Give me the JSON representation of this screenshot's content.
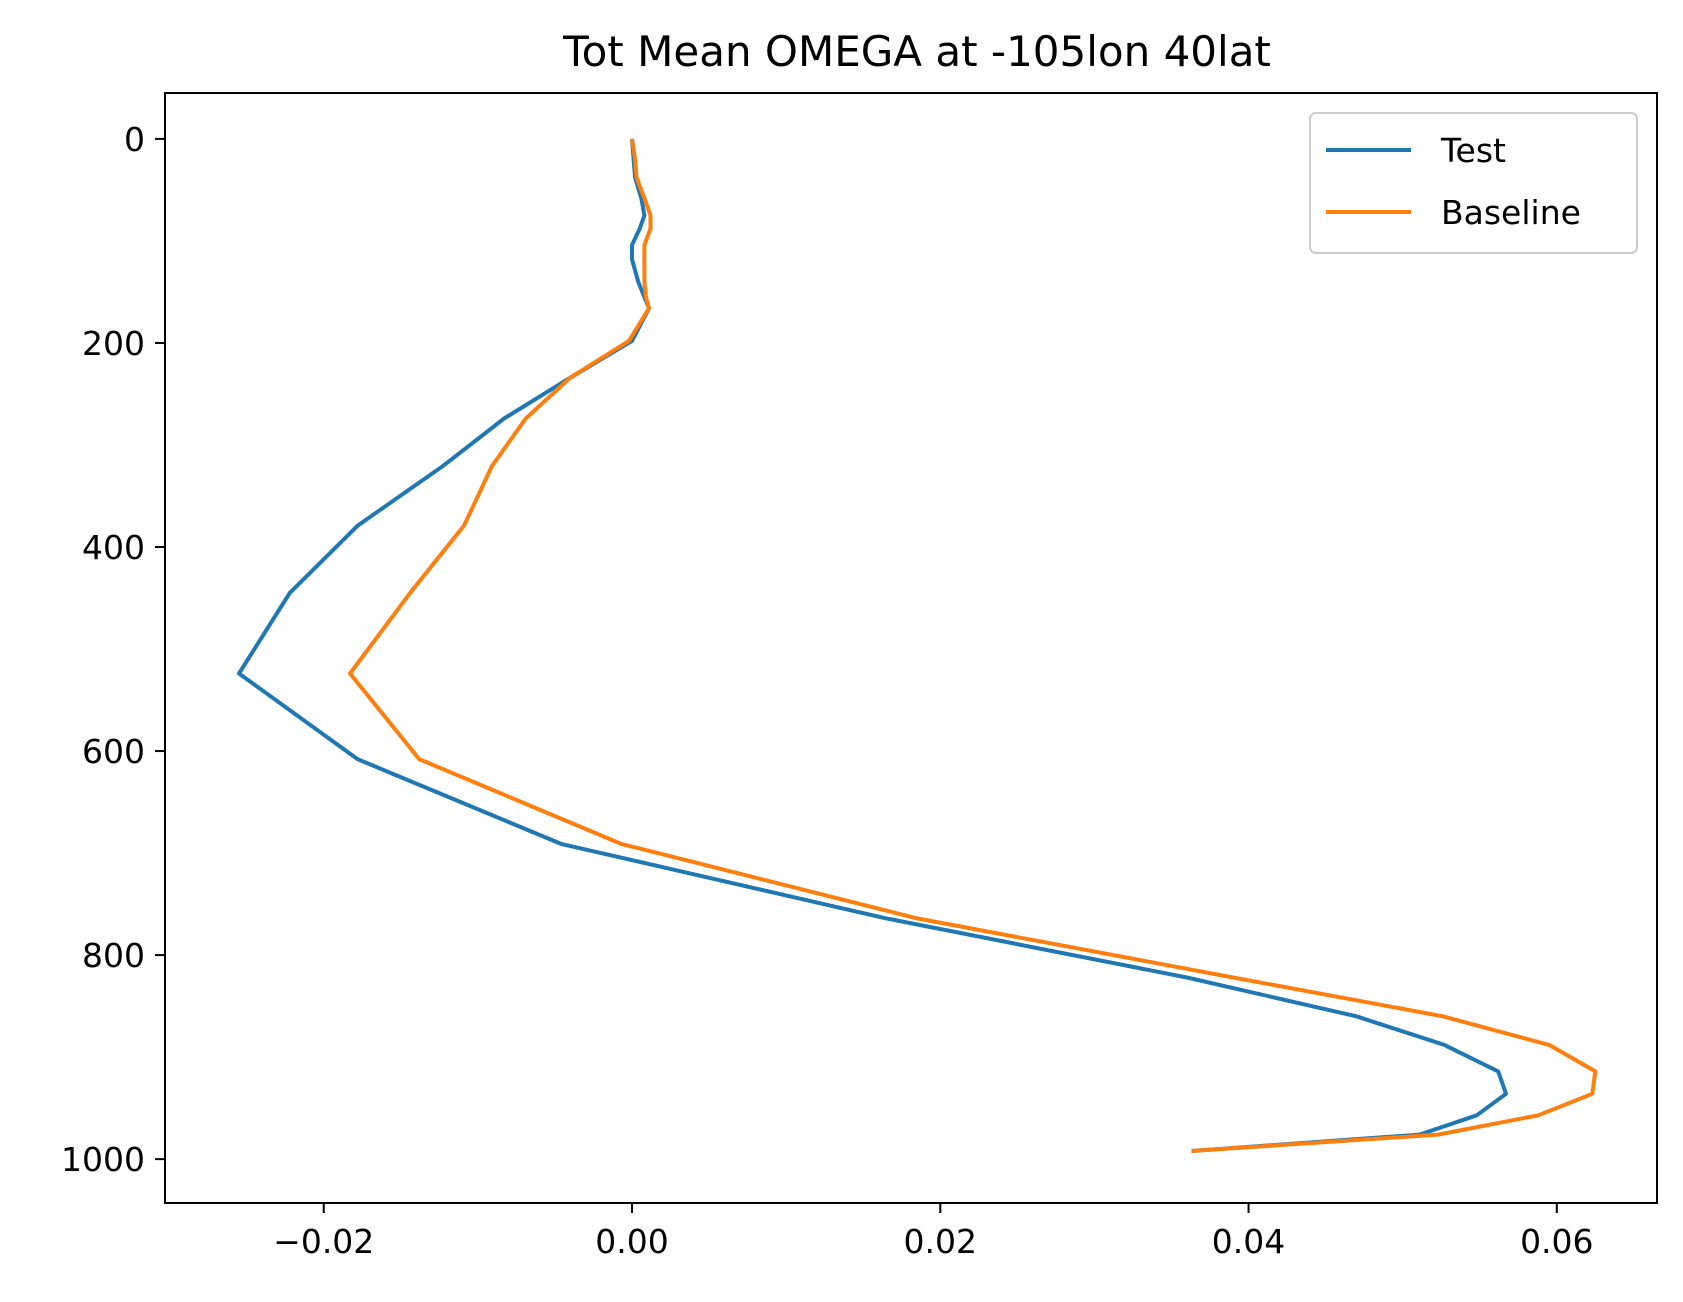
{
  "chart_data": {
    "type": "line",
    "title": "Tot Mean OMEGA at -105lon 40lat",
    "xlabel": "",
    "ylabel": "",
    "xlim": [
      -0.0303,
      0.0665
    ],
    "ylim": [
      1043,
      -45
    ],
    "y_inverted": true,
    "grid": false,
    "legend_position": "upper right",
    "x_ticks": [
      -0.02,
      0.0,
      0.02,
      0.04,
      0.06
    ],
    "x_tick_labels": [
      "−0.02",
      "0.00",
      "0.02",
      "0.04",
      "0.06"
    ],
    "y_ticks": [
      0,
      200,
      400,
      600,
      800,
      1000
    ],
    "y_tick_labels": [
      "0",
      "200",
      "400",
      "600",
      "800",
      "1000"
    ],
    "series": [
      {
        "name": "Test",
        "color": "#1f77b4",
        "points": [
          [
            0.0,
            0
          ],
          [
            0.0001,
            20
          ],
          [
            0.0002,
            38
          ],
          [
            0.0006,
            58
          ],
          [
            0.0008,
            75
          ],
          [
            0.0005,
            88
          ],
          [
            0.0,
            104
          ],
          [
            0.0,
            118
          ],
          [
            0.0004,
            140
          ],
          [
            0.0008,
            155
          ],
          [
            0.0011,
            166
          ],
          [
            0.0,
            198
          ],
          [
            -0.004,
            234
          ],
          [
            -0.0083,
            274
          ],
          [
            -0.0123,
            321
          ],
          [
            -0.0178,
            379
          ],
          [
            -0.0222,
            445
          ],
          [
            -0.0255,
            524
          ],
          [
            -0.0178,
            608
          ],
          [
            -0.0046,
            691
          ],
          [
            0.0165,
            764
          ],
          [
            0.036,
            822
          ],
          [
            0.047,
            860
          ],
          [
            0.0527,
            888
          ],
          [
            0.0562,
            914
          ],
          [
            0.0567,
            936
          ],
          [
            0.0548,
            957
          ],
          [
            0.0511,
            976
          ],
          [
            0.0363,
            992
          ]
        ]
      },
      {
        "name": "Baseline",
        "color": "#ff7f0e",
        "points": [
          [
            0.0,
            0
          ],
          [
            0.0002,
            20
          ],
          [
            0.0003,
            38
          ],
          [
            0.0008,
            58
          ],
          [
            0.0012,
            75
          ],
          [
            0.0012,
            88
          ],
          [
            0.0008,
            104
          ],
          [
            0.0008,
            118
          ],
          [
            0.0008,
            140
          ],
          [
            0.0009,
            155
          ],
          [
            0.0011,
            166
          ],
          [
            -0.0002,
            198
          ],
          [
            -0.004,
            234
          ],
          [
            -0.0069,
            274
          ],
          [
            -0.0091,
            321
          ],
          [
            -0.0109,
            379
          ],
          [
            -0.0144,
            445
          ],
          [
            -0.0183,
            524
          ],
          [
            -0.0138,
            608
          ],
          [
            -0.0007,
            691
          ],
          [
            0.0185,
            764
          ],
          [
            0.039,
            822
          ],
          [
            0.0526,
            860
          ],
          [
            0.0595,
            888
          ],
          [
            0.0625,
            914
          ],
          [
            0.0623,
            936
          ],
          [
            0.0588,
            957
          ],
          [
            0.0523,
            976
          ],
          [
            0.0363,
            992
          ]
        ]
      }
    ]
  }
}
